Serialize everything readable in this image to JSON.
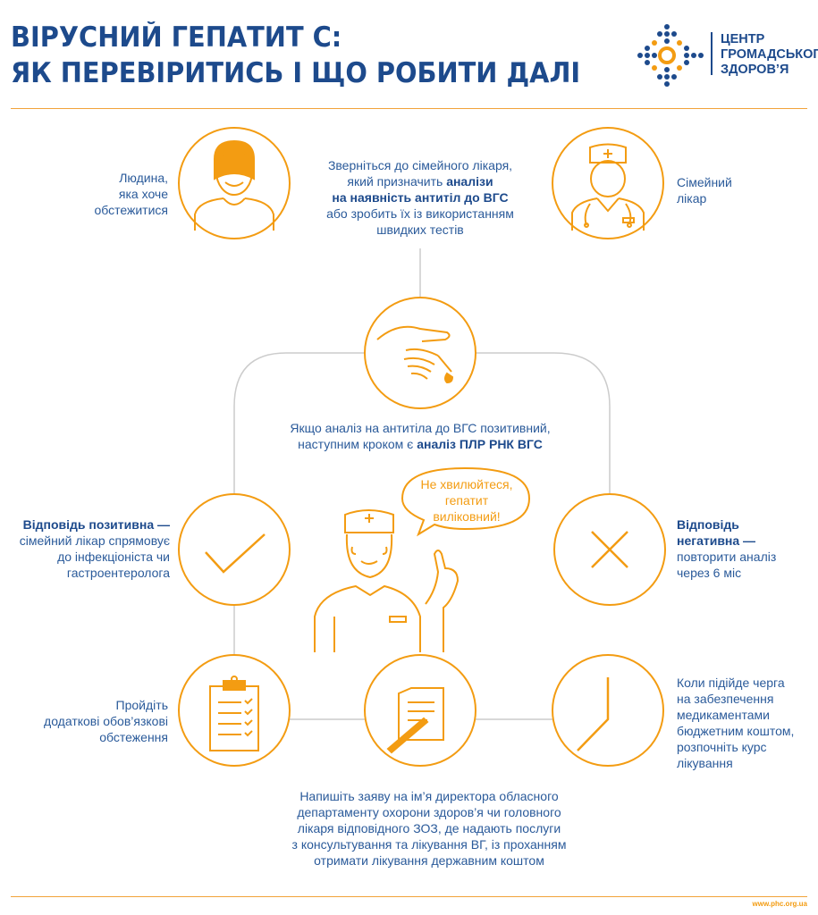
{
  "header": {
    "title_line1": "ВІРУСНИЙ ГЕПАТИТ С:",
    "title_line2": "ЯК ПЕРЕВІРИТИСЬ І ЩО РОБИТИ ДАЛІ"
  },
  "logo": {
    "line1": "ЦЕНТР",
    "line2": "ГРОМАДСЬКОГО",
    "line3": "ЗДОРОВ’Я"
  },
  "colors": {
    "accent": "#f39c12",
    "primary": "#1d4a8c",
    "connector": "#cccccc"
  },
  "nodes": {
    "person": {
      "icon": "person-icon",
      "text": [
        "Людина,",
        "яка хоче",
        "обстежитися"
      ]
    },
    "doctor": {
      "icon": "doctor-icon",
      "text": [
        "Сімейний",
        "лікар"
      ]
    },
    "visit": {
      "pre": "Зверніться до сімейного лікаря,",
      "line2a": "який призначить ",
      "line2b": "аналізи",
      "line3": "на наявність антитіл до ВГС",
      "line4": "або зробить їх із використанням",
      "line5": "швидких тестів"
    },
    "test": {
      "icon": "hand-blood-test-icon",
      "line1": "Якщо аналіз на антитіла до ВГС позитивний,",
      "line2a": "наступним кроком є ",
      "line2b": "аналіз ПЛР РНК ВГС"
    },
    "positive": {
      "icon": "checkmark-icon",
      "bold": "Відповідь позитивна —",
      "rest": [
        "сімейний лікар спрямовує",
        "до інфекціоніста чи",
        "гастроентеролога"
      ]
    },
    "negative": {
      "icon": "cross-icon",
      "bold1": "Відповідь",
      "bold2": "негативна —",
      "rest": [
        "повторити аналіз",
        "через 6 міс"
      ]
    },
    "exams": {
      "icon": "clipboard-icon",
      "text": [
        "Пройдіть",
        "додаткові обов’язкові",
        "обстеження"
      ]
    },
    "application": {
      "icon": "document-pen-icon",
      "text": [
        "Напишіть заяву на ім’я директора обласного",
        "департаменту охорони здоров’я чи головного",
        "лікаря відповідного ЗОЗ, де надають послуги",
        "з консультування та лікування ВГ, із проханням",
        "отримати лікування державним коштом"
      ]
    },
    "treatment": {
      "icon": "clock-icon",
      "text": [
        "Коли підійде черга",
        "на забезпечення",
        "медикаментами",
        "бюджетним коштом,",
        "розпочніть курс",
        "лікування"
      ]
    },
    "bubble": {
      "text": [
        "Не хвилюйтеся,",
        "гепатит",
        "виліковний!"
      ]
    }
  },
  "footer": {
    "url": "www.phc.org.ua"
  }
}
